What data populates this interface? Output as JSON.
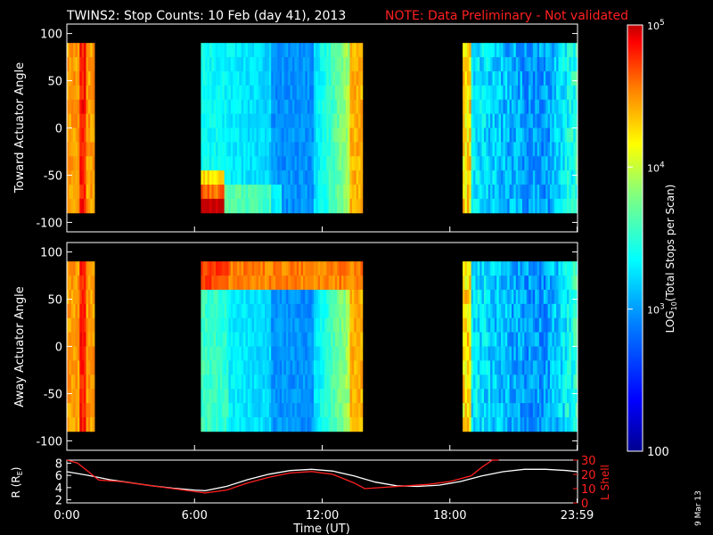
{
  "title": "TWINS2: Stop Counts: 10 Feb (day  41), 2013",
  "note": "NOTE: Data Preliminary - Not validated",
  "stamp": "9 Mar 13",
  "colors": {
    "note": "#ff2020",
    "axis": "#ffffff",
    "lshell": "#ff2020",
    "r": "#ffffff",
    "background": "#000000"
  },
  "chart_data": [
    {
      "type": "heatmap",
      "name_id": "toward",
      "ylabel": "Toward Actuator Angle",
      "ylim": [
        -110,
        110
      ],
      "yticks": [
        100,
        50,
        0,
        -50,
        -100
      ],
      "xlim": [
        0,
        24
      ],
      "data_segments_ut": [
        [
          0.0,
          1.3
        ],
        [
          6.3,
          13.9
        ],
        [
          18.6,
          24.0
        ]
      ],
      "angle_range": [
        -90,
        90
      ]
    },
    {
      "type": "heatmap",
      "name_id": "away",
      "ylabel": "Away Actuator Angle",
      "ylim": [
        -110,
        110
      ],
      "yticks": [
        100,
        50,
        0,
        -50,
        -100
      ],
      "xlim": [
        0,
        24
      ],
      "data_segments_ut": [
        [
          0.0,
          1.3
        ],
        [
          6.3,
          13.9
        ],
        [
          18.6,
          24.0
        ]
      ],
      "angle_range": [
        -90,
        90
      ]
    },
    {
      "type": "line",
      "name_id": "ephemeris",
      "xlabel": "Time (UT)",
      "xticks": [
        "0:00",
        "6:00",
        "12:00",
        "18:00",
        "23:59"
      ],
      "xtick_hours": [
        0,
        6,
        12,
        18,
        23.98
      ],
      "left_axis": {
        "label_main": "R (R",
        "label_sub": "E",
        "label_end": ")",
        "ylim": [
          1.5,
          8.5
        ],
        "yticks": [
          8,
          6,
          4,
          2
        ]
      },
      "right_axis": {
        "label": "L Shell",
        "ylim": [
          0,
          30
        ],
        "yticks": [
          30,
          20,
          10,
          0
        ],
        "tick_labels": [
          "30",
          "20",
          "10",
          "0"
        ]
      },
      "series": [
        {
          "axis": "left",
          "color": "#ffffff",
          "x": [
            0.0,
            1.0,
            2.0,
            3.0,
            4.0,
            5.0,
            6.0,
            6.5,
            7.5,
            8.5,
            9.5,
            10.5,
            11.5,
            12.5,
            13.5,
            14.5,
            15.5,
            16.5,
            17.5,
            18.5,
            19.5,
            20.5,
            21.5,
            22.5,
            23.5,
            24.0
          ],
          "y": [
            6.6,
            6.0,
            5.3,
            4.8,
            4.3,
            3.9,
            3.6,
            3.5,
            4.2,
            5.3,
            6.2,
            6.8,
            7.0,
            6.7,
            5.9,
            4.9,
            4.3,
            4.2,
            4.4,
            5.0,
            5.9,
            6.6,
            7.0,
            7.0,
            6.8,
            6.6
          ]
        },
        {
          "axis": "right",
          "color": "#ff2020",
          "x": [
            0.0,
            0.5,
            1.0,
            1.5,
            2.5,
            3.5,
            4.5,
            5.5,
            6.5,
            7.5,
            8.5,
            9.5,
            10.5,
            11.5,
            12.5,
            13.5,
            14.0,
            15.0,
            16.0,
            17.0,
            18.0,
            19.0,
            19.5,
            20.0,
            20.3
          ],
          "y": [
            33,
            28,
            22,
            16,
            15,
            13,
            11,
            9,
            7,
            9,
            14,
            18,
            21,
            22,
            20,
            14,
            10,
            11,
            12,
            13,
            15,
            19,
            25,
            30,
            33
          ]
        }
      ]
    }
  ],
  "colorbar": {
    "label_main": "LOG",
    "label_sub": "10",
    "label_end": "(Total Stops per Scan)",
    "ticks": [
      {
        "base": "10",
        "exp": "5",
        "value": 100000
      },
      {
        "base": "10",
        "exp": "4",
        "value": 10000
      },
      {
        "base": "10",
        "exp": "3",
        "value": 1000
      },
      {
        "base": "100",
        "exp": "",
        "value": 100
      }
    ],
    "range": [
      100,
      100000
    ],
    "colormap": [
      "#00007f",
      "#0000ff",
      "#007fff",
      "#00ffff",
      "#7fff7f",
      "#ffff00",
      "#ff7f00",
      "#ff0000",
      "#b00000"
    ]
  }
}
